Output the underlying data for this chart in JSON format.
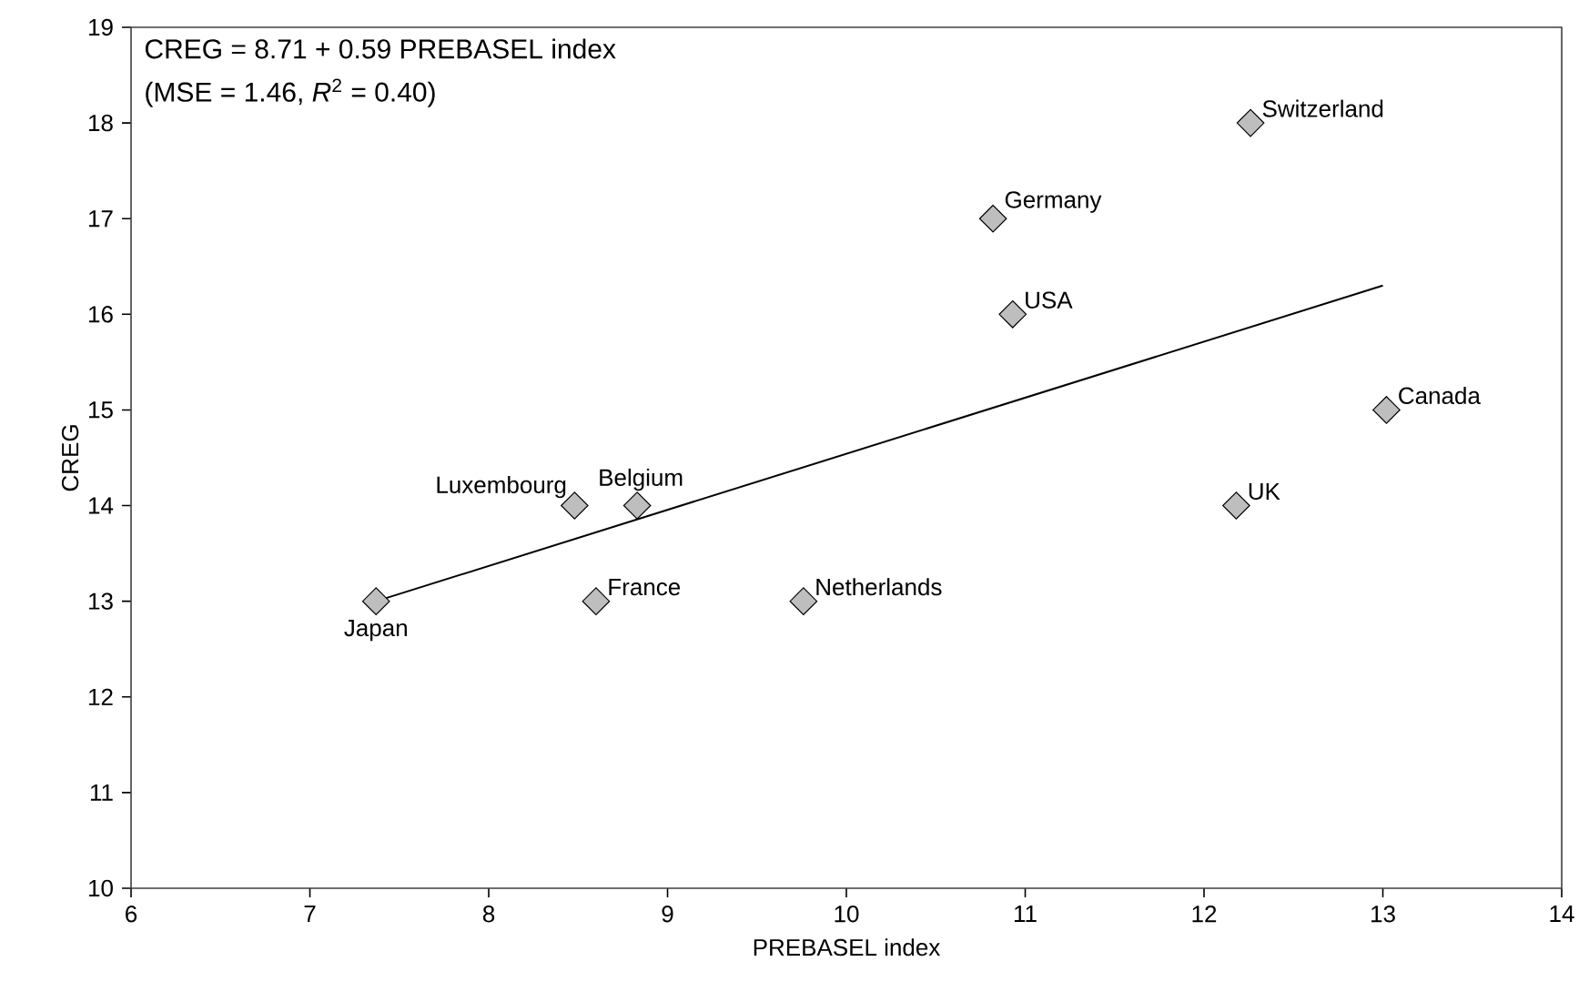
{
  "chart_data": {
    "type": "scatter",
    "xlabel": "PREBASEL index",
    "ylabel": "CREG",
    "xlim": [
      6,
      14
    ],
    "ylim": [
      10,
      19
    ],
    "xticks": [
      6,
      7,
      8,
      9,
      10,
      11,
      12,
      13,
      14
    ],
    "yticks": [
      10,
      11,
      12,
      13,
      14,
      15,
      16,
      17,
      18,
      19
    ],
    "series": [
      {
        "color": "#bebebe",
        "marker": "diamond",
        "x": [
          7.37,
          8.48,
          8.83,
          8.6,
          9.76,
          10.82,
          10.93,
          12.26,
          12.18,
          13.02
        ],
        "values": [
          13,
          14,
          14,
          13,
          13,
          17,
          16,
          18,
          14,
          15
        ]
      },
      {
        "type": "line",
        "color": "#000000",
        "x": [
          7.37,
          13.0
        ],
        "values": [
          13.0,
          16.3
        ]
      }
    ],
    "annotations": [
      "CREG = 8.71 + 0.59 PREBASEL index",
      "(MSE = 1.46, *R*$^{2}$ = 0.40)",
      {
        "text": "Japan",
        "x": 7.37,
        "y": 13
      },
      {
        "text": "Luxembourg",
        "x": 8.48,
        "y": 14
      },
      {
        "text": "Belgium",
        "x": 8.83,
        "y": 14
      },
      {
        "text": "France",
        "x": 8.6,
        "y": 13
      },
      {
        "text": "Netherlands",
        "x": 9.76,
        "y": 13
      },
      {
        "text": "Germany",
        "x": 10.82,
        "y": 17
      },
      {
        "text": "USA",
        "x": 10.93,
        "y": 16
      },
      {
        "text": "Switzerland",
        "x": 12.26,
        "y": 18
      },
      {
        "text": "UK",
        "x": 12.18,
        "y": 14
      },
      {
        "text": "Canada",
        "x": 13.02,
        "y": 15
      }
    ]
  }
}
